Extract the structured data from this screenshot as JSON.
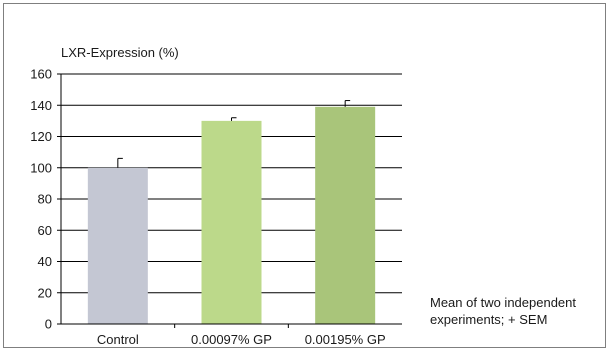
{
  "chart_data": {
    "type": "bar",
    "ylabel": "LXR-Expression (%)",
    "categories": [
      "Control",
      "0.00097% GP",
      "0.00195% GP"
    ],
    "values": [
      100,
      130,
      139
    ],
    "error_plus": [
      6,
      2,
      4
    ],
    "colors": [
      "#c4c7d3",
      "#bcd98a",
      "#a9c57a"
    ],
    "ylim": [
      0,
      160
    ],
    "yticks": [
      0,
      20,
      40,
      60,
      80,
      100,
      120,
      140,
      160
    ],
    "grid": true,
    "note_lines": [
      "Mean of two independent",
      "experiments; + SEM"
    ]
  }
}
